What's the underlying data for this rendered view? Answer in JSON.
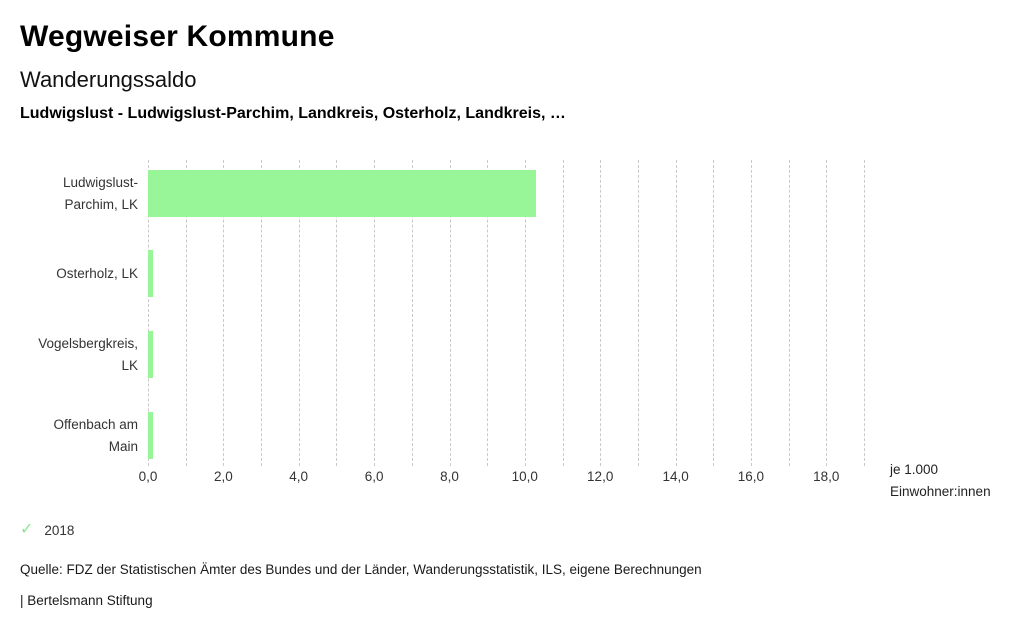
{
  "header": {
    "title": "Wegweiser Kommune",
    "subtitle": "Wanderungssaldo",
    "selection": "Ludwigslust - Ludwigslust-Parchim, Landkreis, Osterholz, Landkreis, …"
  },
  "chart_data": {
    "type": "bar",
    "orientation": "horizontal",
    "title": "Wanderungssaldo",
    "categories": [
      "Ludwigslust-Parchim, LK",
      "Osterholz, LK",
      "Vogelsbergkreis, LK",
      "Offenbach am Main"
    ],
    "category_label_lines": [
      [
        "Ludwigslust-",
        "Parchim, LK"
      ],
      [
        "Osterholz, LK"
      ],
      [
        "Vogelsbergkreis,",
        "LK"
      ],
      [
        "Offenbach am",
        "Main"
      ]
    ],
    "series": [
      {
        "name": "2018",
        "values": [
          10.3,
          0.1,
          0.1,
          0.1
        ]
      }
    ],
    "xlabel": "je 1.000 Einwohner:innen",
    "unit_label_lines": [
      "je 1.000",
      "Einwohner:innen"
    ],
    "x_tick_labels": [
      "0,0",
      "2,0",
      "4,0",
      "6,0",
      "8,0",
      "10,0",
      "12,0",
      "14,0",
      "16,0",
      "18,0"
    ],
    "x_tick_values": [
      0,
      2,
      4,
      6,
      8,
      10,
      12,
      14,
      16,
      18
    ],
    "xlim": [
      0,
      19
    ],
    "gridline_step": 1,
    "grid_on": true,
    "legend_position": "bottom-left",
    "bar_color": "#98f598",
    "grid_color": "#c9c9c9"
  },
  "legend": {
    "check_icon": "✓",
    "check_color": "#8ce68c",
    "year": "2018"
  },
  "footer": {
    "source": "Quelle: FDZ der Statistischen Ämter des Bundes und der Länder, Wanderungsstatistik, ILS, eigene Berechnungen",
    "attribution": "| Bertelsmann Stiftung"
  }
}
